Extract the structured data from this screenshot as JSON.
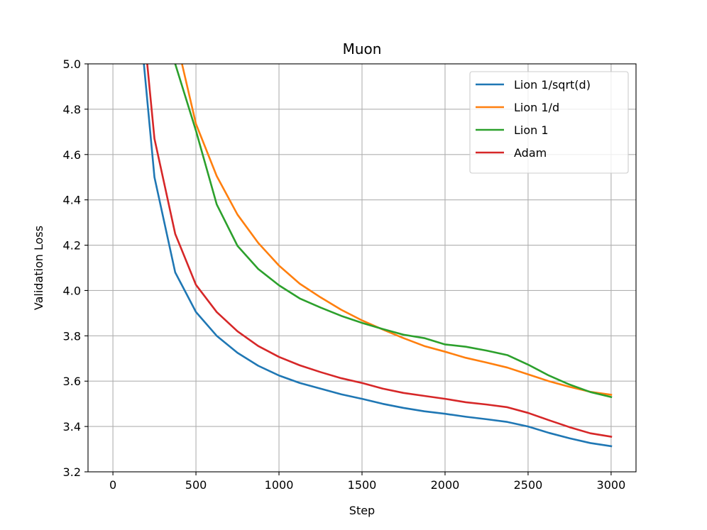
{
  "chart_data": {
    "type": "line",
    "title": "Muon",
    "xlabel": "Step",
    "ylabel": "Validation Loss",
    "xlim": [
      -150,
      3150
    ],
    "ylim": [
      3.2,
      5.0
    ],
    "xticks": [
      0,
      500,
      1000,
      1500,
      2000,
      2500,
      3000
    ],
    "yticks": [
      3.2,
      3.4,
      3.6,
      3.8,
      4.0,
      4.2,
      4.4,
      4.6,
      4.8,
      5.0
    ],
    "xtick_labels": [
      "0",
      "500",
      "1000",
      "1500",
      "2000",
      "2500",
      "3000"
    ],
    "ytick_labels": [
      "3.2",
      "3.4",
      "3.6",
      "3.8",
      "4.0",
      "4.2",
      "4.4",
      "4.6",
      "4.8",
      "5.0"
    ],
    "grid": true,
    "legend_position": "top-right",
    "series": [
      {
        "name": "Lion 1/sqrt(d)",
        "color": "#1f77b4",
        "x": [
          180,
          250,
          375,
          500,
          625,
          750,
          875,
          1000,
          1125,
          1250,
          1375,
          1500,
          1625,
          1750,
          1875,
          2000,
          2125,
          2250,
          2375,
          2500,
          2625,
          2750,
          2875,
          3000
        ],
        "y": [
          5.05,
          4.5,
          4.08,
          3.905,
          3.8,
          3.725,
          3.668,
          3.625,
          3.592,
          3.567,
          3.542,
          3.522,
          3.5,
          3.482,
          3.467,
          3.456,
          3.443,
          3.432,
          3.42,
          3.4,
          3.372,
          3.348,
          3.327,
          3.313
        ]
      },
      {
        "name": "Lion 1/d",
        "color": "#ff7f0e",
        "x": [
          400,
          500,
          625,
          750,
          875,
          1000,
          1125,
          1250,
          1375,
          1500,
          1625,
          1750,
          1875,
          2000,
          2125,
          2250,
          2375,
          2500,
          2625,
          2750,
          2875,
          3000
        ],
        "y": [
          5.05,
          4.735,
          4.505,
          4.335,
          4.21,
          4.11,
          4.03,
          3.97,
          3.915,
          3.868,
          3.828,
          3.79,
          3.755,
          3.73,
          3.703,
          3.682,
          3.66,
          3.63,
          3.6,
          3.575,
          3.553,
          3.54
        ]
      },
      {
        "name": "Lion 1",
        "color": "#2ca02c",
        "x": [
          375,
          500,
          625,
          750,
          875,
          1000,
          1125,
          1250,
          1375,
          1500,
          1625,
          1750,
          1875,
          2000,
          2125,
          2250,
          2375,
          2500,
          2625,
          2750,
          2875,
          3000
        ],
        "y": [
          5.0,
          4.705,
          4.38,
          4.197,
          4.095,
          4.023,
          3.965,
          3.925,
          3.888,
          3.857,
          3.83,
          3.805,
          3.79,
          3.762,
          3.752,
          3.735,
          3.715,
          3.673,
          3.625,
          3.585,
          3.552,
          3.53
        ]
      },
      {
        "name": "Adam",
        "color": "#d62728",
        "x": [
          200,
          250,
          375,
          500,
          625,
          750,
          875,
          1000,
          1125,
          1250,
          1375,
          1500,
          1625,
          1750,
          1875,
          2000,
          2125,
          2250,
          2375,
          2500,
          2625,
          2750,
          2875,
          3000
        ],
        "y": [
          5.05,
          4.67,
          4.25,
          4.025,
          3.905,
          3.82,
          3.755,
          3.707,
          3.67,
          3.64,
          3.613,
          3.592,
          3.567,
          3.548,
          3.535,
          3.522,
          3.507,
          3.497,
          3.485,
          3.46,
          3.428,
          3.397,
          3.37,
          3.355
        ]
      }
    ]
  }
}
